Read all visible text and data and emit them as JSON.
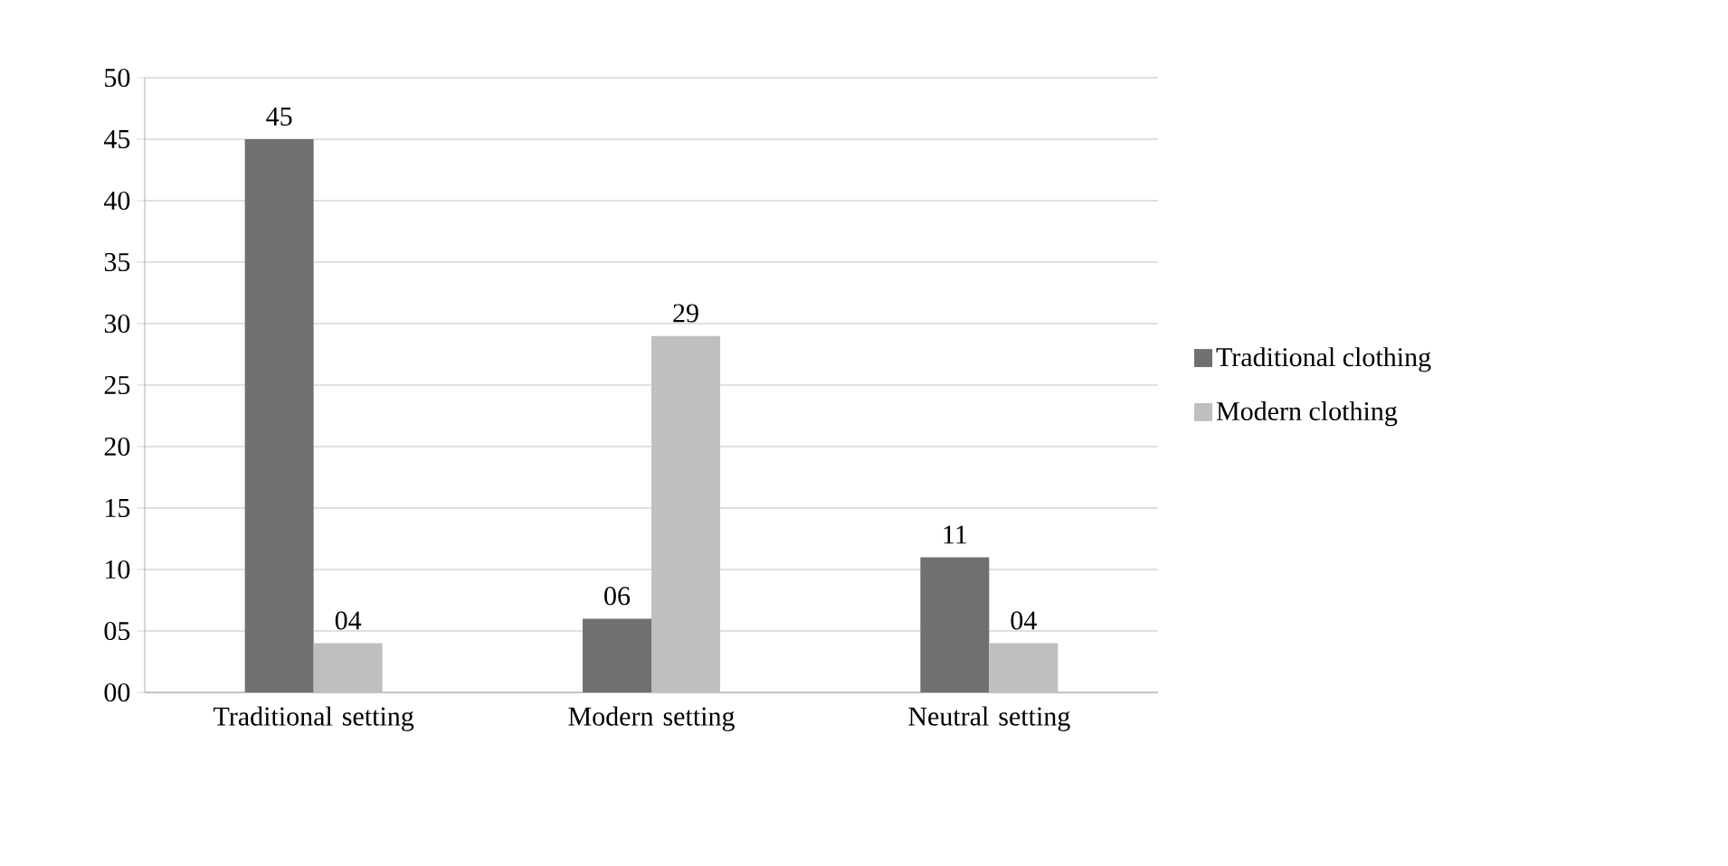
{
  "chart_data": {
    "type": "bar",
    "categories": [
      "Traditional setting",
      "Modern setting",
      "Neutral setting"
    ],
    "series": [
      {
        "name": "Traditional clothing",
        "color": "#707070",
        "values": [
          45,
          6,
          11
        ],
        "value_labels": [
          "45",
          "06",
          "11"
        ]
      },
      {
        "name": "Modern clothing",
        "color": "#bfbfbf",
        "values": [
          4,
          29,
          4
        ],
        "value_labels": [
          "04",
          "29",
          "04"
        ]
      }
    ],
    "ylim": [
      0,
      50
    ],
    "yticks": [
      {
        "value": 0,
        "label": "00"
      },
      {
        "value": 5,
        "label": "05"
      },
      10,
      15,
      20,
      25,
      30,
      35,
      40,
      45,
      50
    ],
    "grid": "y",
    "legend": "right"
  }
}
